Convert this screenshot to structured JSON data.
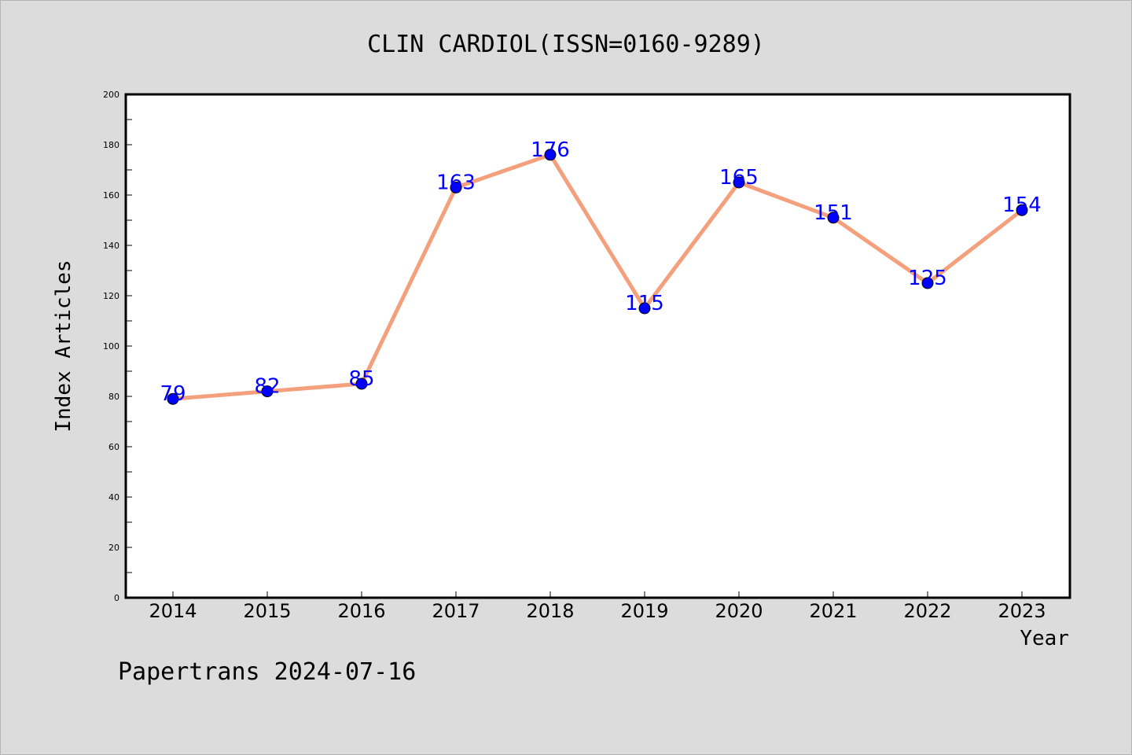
{
  "chart_data": {
    "type": "line",
    "title": "CLIN CARDIOL(ISSN=0160-9289)",
    "xlabel": "Year",
    "ylabel": "Index Articles",
    "categories": [
      "2014",
      "2015",
      "2016",
      "2017",
      "2018",
      "2019",
      "2020",
      "2021",
      "2022",
      "2023"
    ],
    "series": [
      {
        "values": [
          79,
          82,
          85,
          163,
          176,
          115,
          165,
          151,
          125,
          154
        ]
      }
    ],
    "data_labels": [
      "79",
      "82",
      "85",
      "163",
      "176",
      "115",
      "165",
      "151",
      "125",
      "154"
    ],
    "ylim": [
      0,
      200
    ],
    "yticks": [
      0,
      20,
      40,
      60,
      80,
      100,
      120,
      140,
      160,
      180,
      200
    ],
    "grid": false,
    "legend": "none",
    "colors": {
      "line": "#f4a07c",
      "marker": "#0000ff",
      "data_label": "#0000ff",
      "plot_background": "#ffffff",
      "figure_background": "#dcdcdc"
    }
  },
  "footer": "Papertrans 2024-07-16"
}
